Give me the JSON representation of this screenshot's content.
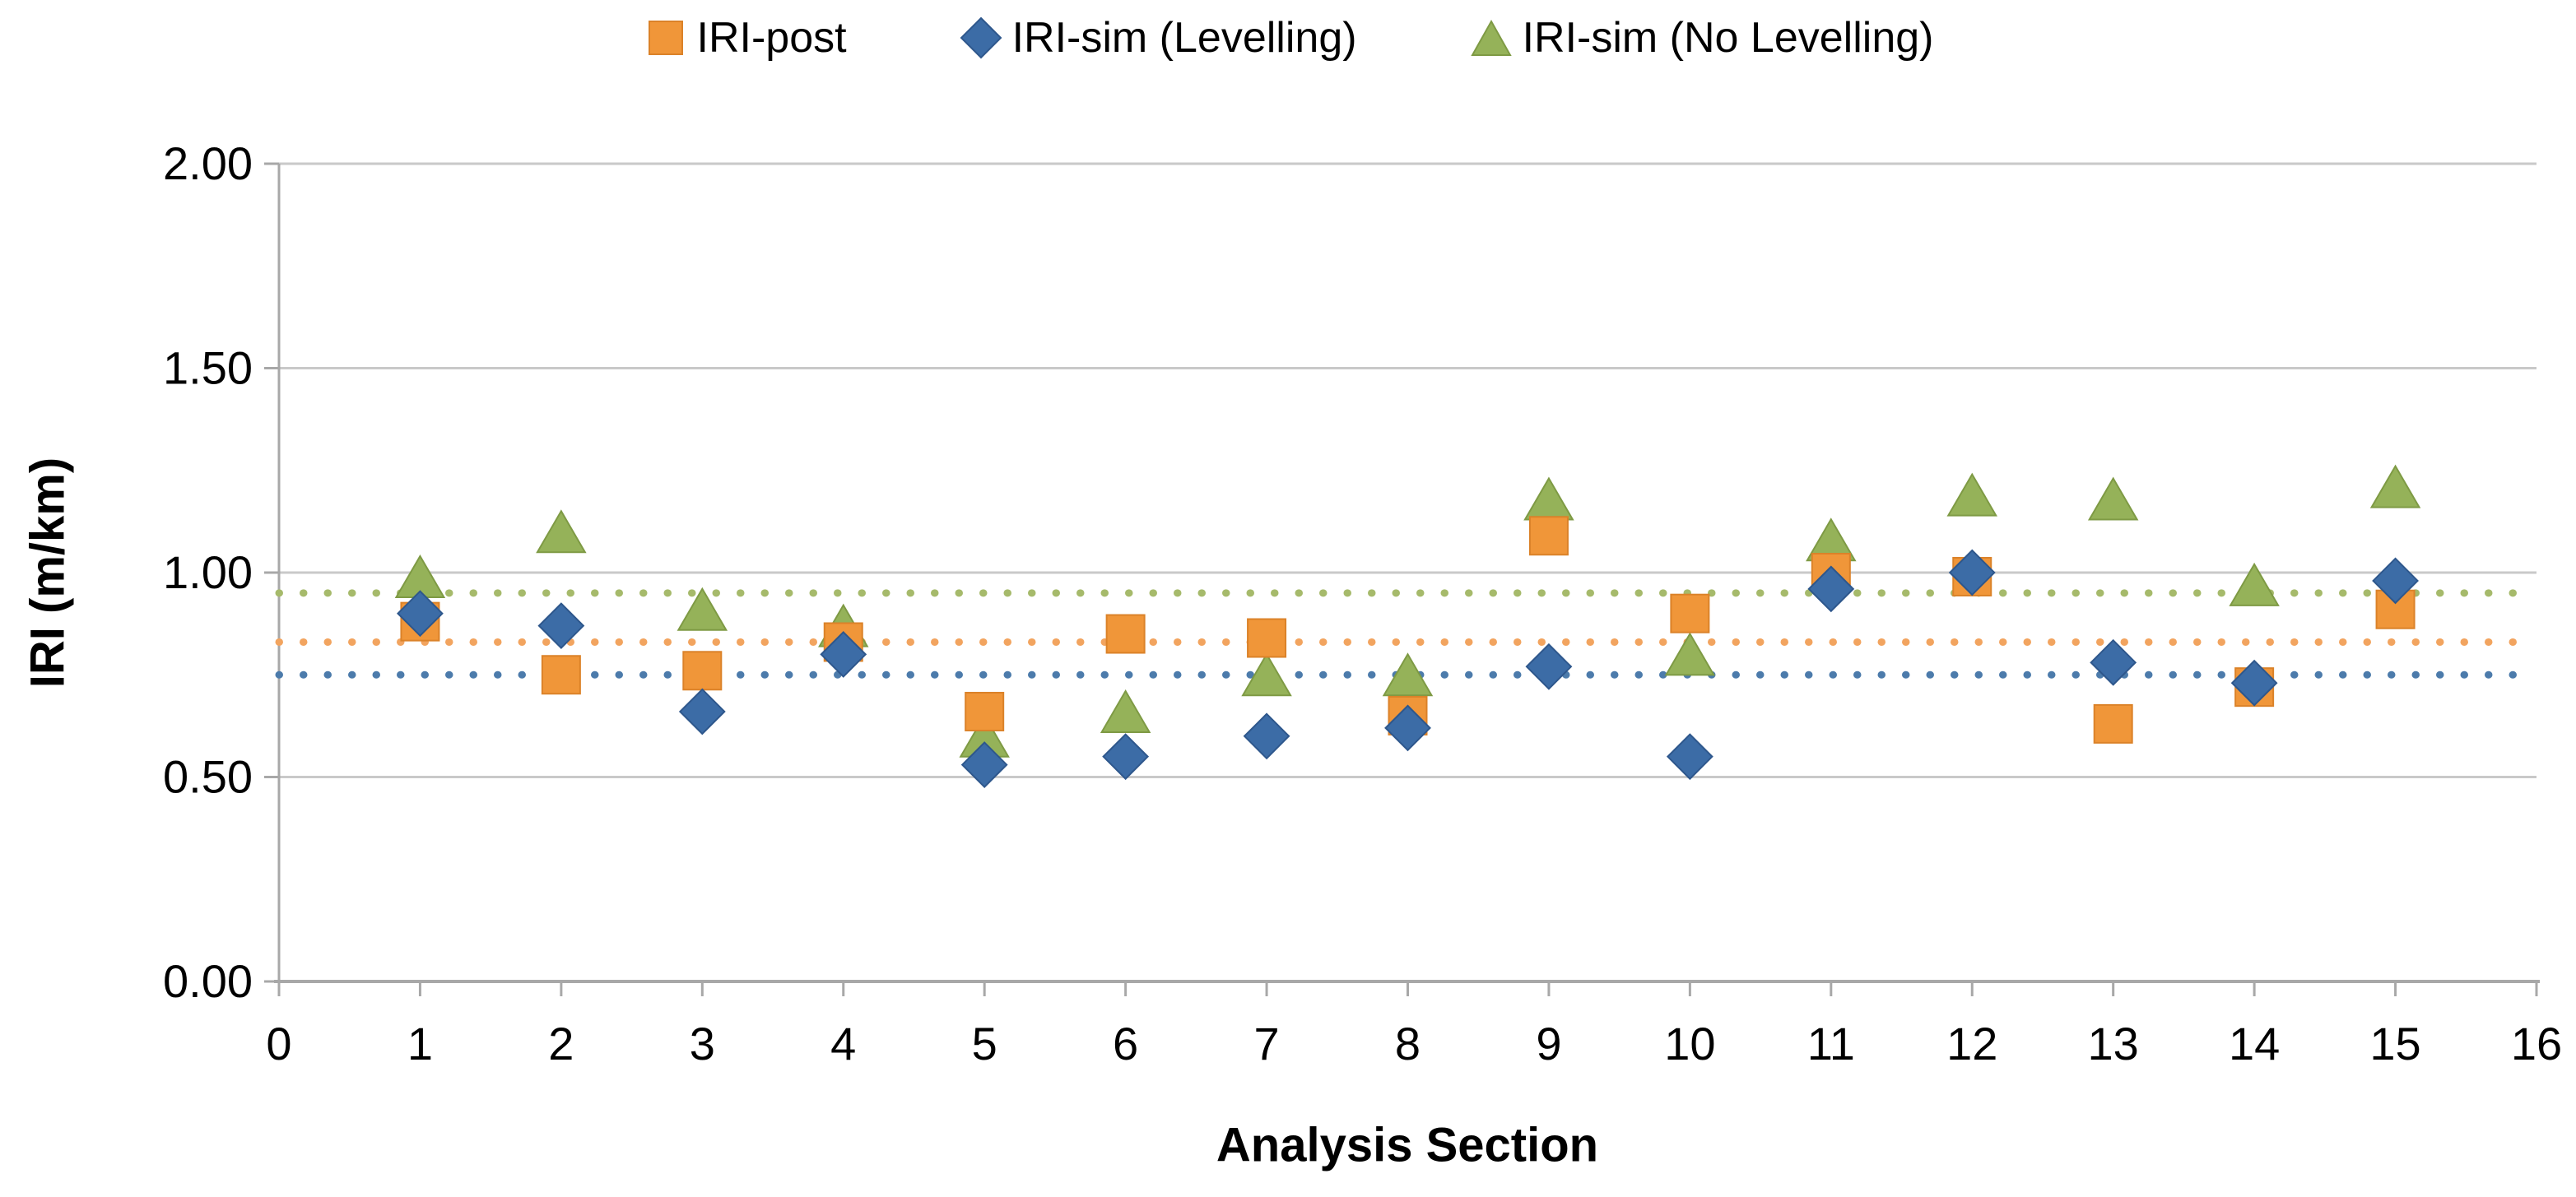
{
  "legend": {
    "items": [
      {
        "label": "IRI-post",
        "marker": "square"
      },
      {
        "label": "IRI-sim (Levelling)",
        "marker": "diamond"
      },
      {
        "label": "IRI-sim (No Levelling)",
        "marker": "triangle"
      }
    ]
  },
  "chart_data": {
    "type": "scatter",
    "title": "",
    "xlabel": "Analysis Section",
    "ylabel": "IRI (m/km)",
    "xlim": [
      0,
      16
    ],
    "ylim": [
      0,
      2
    ],
    "x_ticks": [
      0,
      1,
      2,
      3,
      4,
      5,
      6,
      7,
      8,
      9,
      10,
      11,
      12,
      13,
      14,
      15,
      16
    ],
    "y_ticks": [
      {
        "value": 0.0,
        "label": "0.00"
      },
      {
        "value": 0.5,
        "label": "0.50"
      },
      {
        "value": 1.0,
        "label": "1.00"
      },
      {
        "value": 1.5,
        "label": "1.50"
      },
      {
        "value": 2.0,
        "label": "2.00"
      }
    ],
    "grid": "horizontal",
    "legend_position": "top",
    "x": [
      1,
      2,
      3,
      4,
      5,
      6,
      7,
      8,
      9,
      10,
      11,
      12,
      13,
      14,
      15
    ],
    "series": [
      {
        "name": "IRI-post",
        "marker": "square",
        "color": "#F09639",
        "border_color": "#DB8229",
        "mean_line_color": "#F2A45F",
        "values": [
          0.88,
          0.75,
          0.76,
          0.83,
          0.66,
          0.85,
          0.84,
          0.65,
          1.09,
          0.9,
          1.0,
          0.99,
          0.63,
          0.72,
          0.91
        ],
        "mean": 0.83
      },
      {
        "name": "IRI-sim (Levelling)",
        "marker": "diamond",
        "color": "#3C6CA6",
        "border_color": "#2E578C",
        "mean_line_color": "#4C7BAB",
        "values": [
          0.9,
          0.87,
          0.66,
          0.8,
          0.53,
          0.55,
          0.6,
          0.62,
          0.77,
          0.55,
          0.96,
          1.0,
          0.78,
          0.73,
          0.98
        ],
        "mean": 0.75
      },
      {
        "name": "IRI-sim (No Levelling)",
        "marker": "triangle",
        "color": "#95B259",
        "border_color": "#7E9A44",
        "mean_line_color": "#A6BA6B",
        "values": [
          0.99,
          1.1,
          0.91,
          0.87,
          0.6,
          0.66,
          0.75,
          0.75,
          1.18,
          0.8,
          1.08,
          1.19,
          1.18,
          0.97,
          1.21
        ],
        "mean": 0.95
      }
    ],
    "grid_color": "#C9C9C9",
    "axis_color": "#A8A8A8"
  }
}
